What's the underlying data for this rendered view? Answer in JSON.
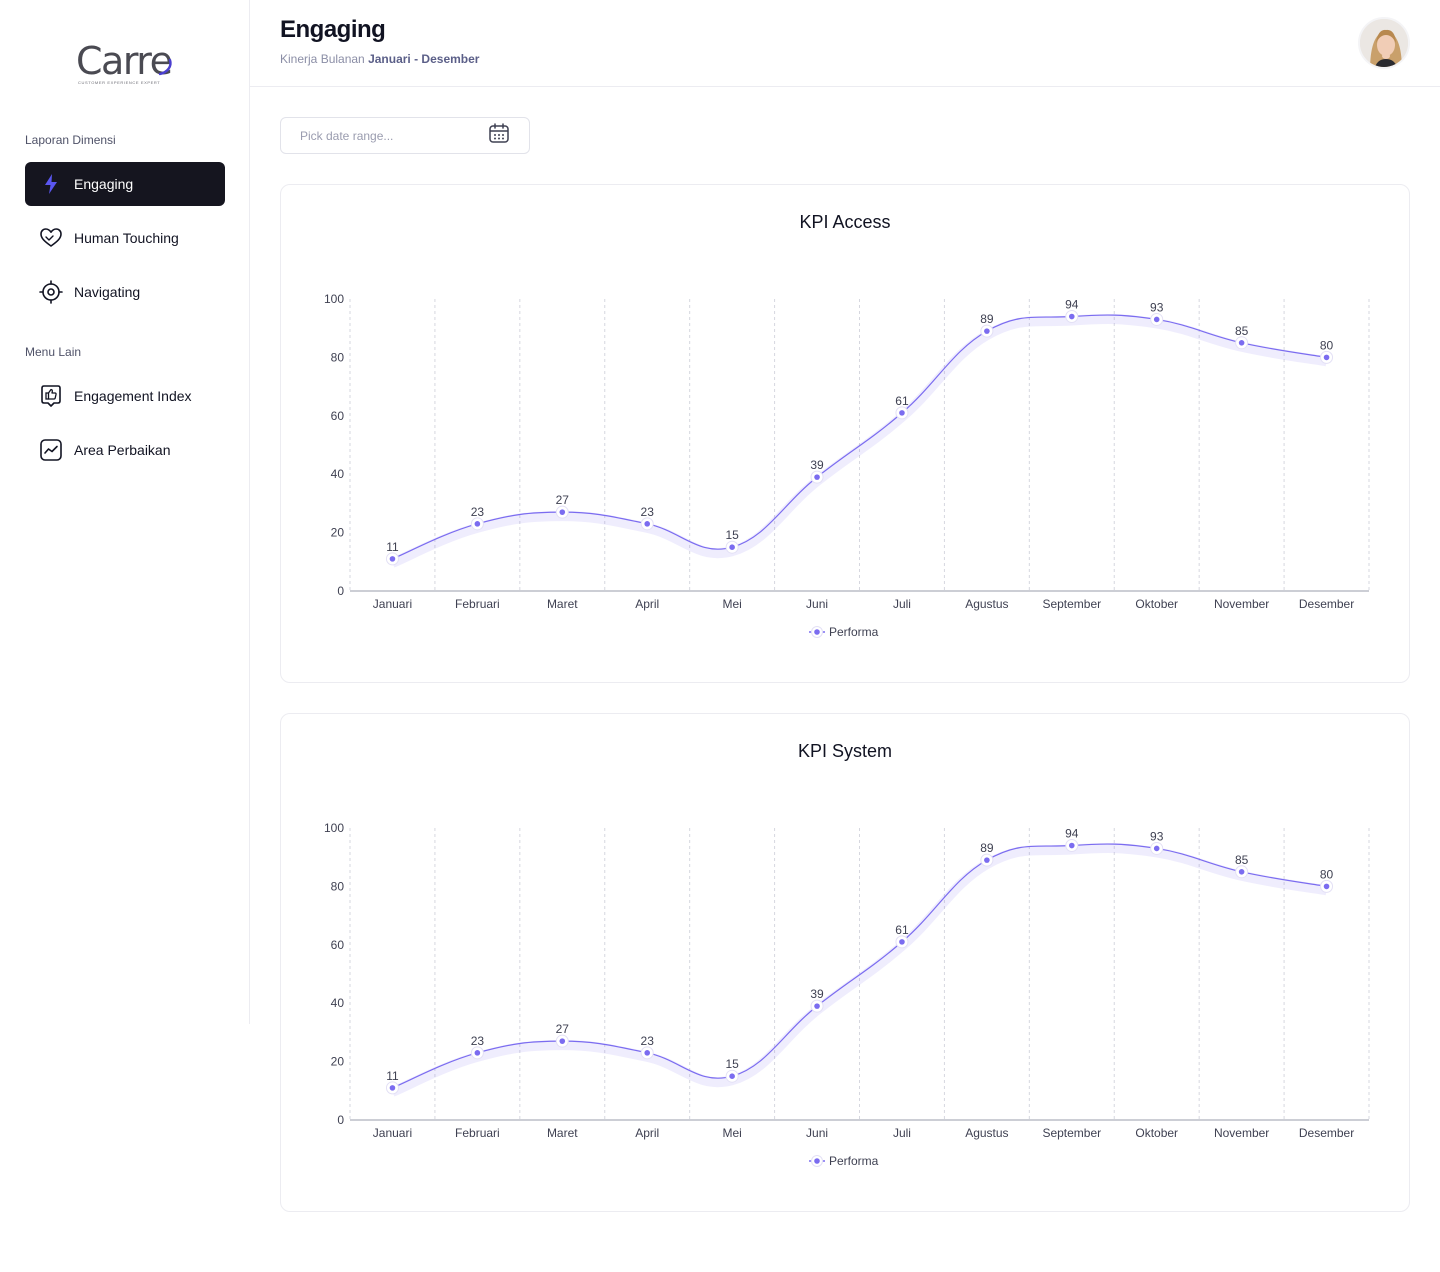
{
  "brand": {
    "name": "Carre",
    "tagline": "CUSTOMER EXPERIENCE EXPERT"
  },
  "sidebar": {
    "sections": [
      {
        "label": "Laporan Dimensi",
        "items": [
          {
            "label": "Engaging",
            "icon": "lightning-icon",
            "active": true
          },
          {
            "label": "Human Touching",
            "icon": "heart-hands-icon",
            "active": false
          },
          {
            "label": "Navigating",
            "icon": "target-icon",
            "active": false
          }
        ]
      },
      {
        "label": "Menu Lain",
        "items": [
          {
            "label": "Engagement Index",
            "icon": "thumbs-up-icon",
            "active": false
          },
          {
            "label": "Area Perbaikan",
            "icon": "trend-line-icon",
            "active": false
          }
        ]
      }
    ]
  },
  "header": {
    "title": "Engaging",
    "subtitle_prefix": "Kinerja Bulanan",
    "subtitle_range": "Januari - Desember"
  },
  "date_picker": {
    "placeholder": "Pick date range..."
  },
  "colors": {
    "accent": "#7b6cf0",
    "accent_dark": "#15151f",
    "icon_active": "#5a56f0"
  },
  "chart_data": [
    {
      "type": "line",
      "title": "KPI Access",
      "categories": [
        "Januari",
        "Februari",
        "Maret",
        "April",
        "Mei",
        "Juni",
        "Juli",
        "Agustus",
        "September",
        "Oktober",
        "November",
        "Desember"
      ],
      "series": [
        {
          "name": "Performa",
          "values": [
            11,
            23,
            27,
            23,
            15,
            39,
            61,
            89,
            94,
            93,
            85,
            80
          ]
        }
      ],
      "y_ticks": [
        0,
        20,
        40,
        60,
        80,
        100
      ],
      "ylim": [
        0,
        100
      ],
      "grid": "vertical-dashed",
      "legend": "bottom-center",
      "data_labels": true
    },
    {
      "type": "line",
      "title": "KPI System",
      "categories": [
        "Januari",
        "Februari",
        "Maret",
        "April",
        "Mei",
        "Juni",
        "Juli",
        "Agustus",
        "September",
        "Oktober",
        "November",
        "Desember"
      ],
      "series": [
        {
          "name": "Performa",
          "values": [
            11,
            23,
            27,
            23,
            15,
            39,
            61,
            89,
            94,
            93,
            85,
            80
          ]
        }
      ],
      "y_ticks": [
        0,
        20,
        40,
        60,
        80,
        100
      ],
      "ylim": [
        0,
        100
      ],
      "grid": "vertical-dashed",
      "legend": "bottom-center",
      "data_labels": true
    }
  ]
}
